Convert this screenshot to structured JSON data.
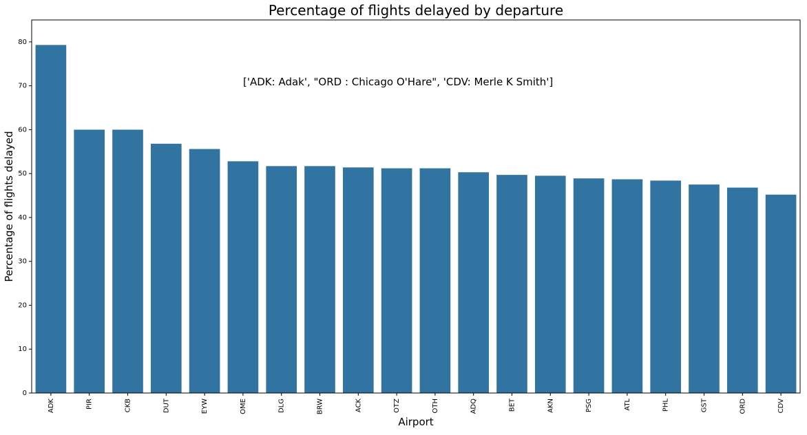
{
  "chart_data": {
    "type": "bar",
    "title": "Percentage of flights delayed by departure",
    "xlabel": "Airport",
    "ylabel": "Percentage of flights delayed",
    "annotation": "['ADK: Adak', \"ORD : Chicago O'Hare\", 'CDV: Merle K Smith']",
    "categories": [
      "ADK",
      "PIR",
      "CKB",
      "DUT",
      "EYW",
      "OME",
      "DLG",
      "BRW",
      "ACK",
      "OTZ",
      "OTH",
      "ADQ",
      "BET",
      "AKN",
      "PSG",
      "ATL",
      "PHL",
      "GST",
      "ORD",
      "CDV"
    ],
    "values": [
      79.3,
      60.0,
      60.0,
      56.8,
      55.6,
      52.8,
      51.7,
      51.7,
      51.4,
      51.2,
      51.2,
      50.3,
      49.7,
      49.5,
      48.9,
      48.7,
      48.4,
      47.5,
      46.8,
      45.2
    ],
    "ylim": [
      0,
      85
    ],
    "yticks": [
      0,
      10,
      20,
      30,
      40,
      50,
      60,
      70,
      80
    ],
    "bar_color": "#3274a1",
    "grid": false
  }
}
